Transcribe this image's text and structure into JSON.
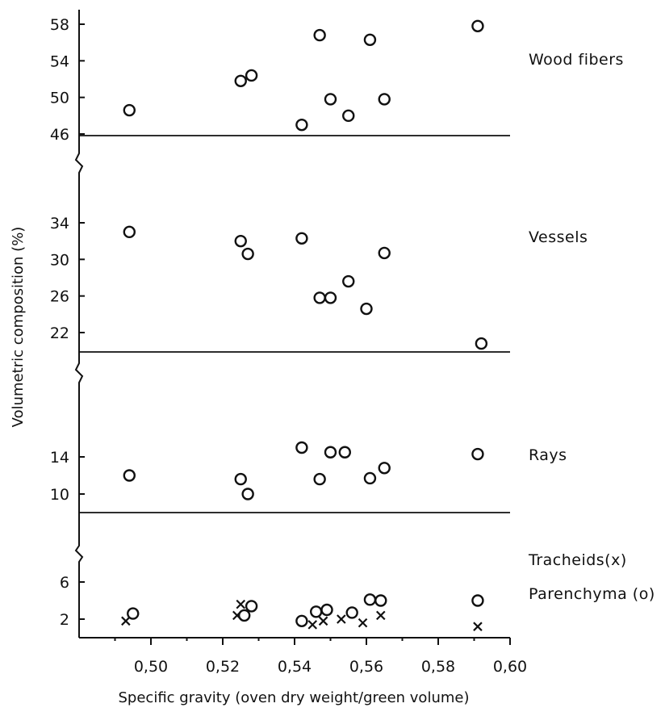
{
  "chart_data": {
    "type": "scatter",
    "xlabel": "Specific gravity (oven dry weight/green volume)",
    "ylabel": "Volumetric composition (%)",
    "xlim": [
      0.48,
      0.6
    ],
    "x_ticks": [
      "0,50",
      "0,52",
      "0,54",
      "0,56",
      "0,58",
      "0,60"
    ],
    "x_tick_values": [
      0.5,
      0.52,
      0.54,
      0.56,
      0.58,
      0.6
    ],
    "panels": [
      {
        "label": "Wood fibers",
        "ylim": [
          46,
          59
        ],
        "y_ticks": [
          46,
          50,
          54,
          58
        ],
        "series": [
          {
            "marker": "o",
            "points": [
              [
                0.494,
                48.6
              ],
              [
                0.525,
                51.8
              ],
              [
                0.528,
                52.4
              ],
              [
                0.542,
                47.0
              ],
              [
                0.547,
                56.8
              ],
              [
                0.55,
                49.8
              ],
              [
                0.555,
                48.0
              ],
              [
                0.561,
                56.3
              ],
              [
                0.565,
                49.8
              ],
              [
                0.591,
                57.8
              ]
            ]
          }
        ]
      },
      {
        "label": "Vessels",
        "ylim": [
          20,
          35
        ],
        "y_ticks": [
          22,
          26,
          30,
          34
        ],
        "series": [
          {
            "marker": "o",
            "points": [
              [
                0.494,
                33.0
              ],
              [
                0.525,
                32.0
              ],
              [
                0.527,
                30.6
              ],
              [
                0.542,
                32.3
              ],
              [
                0.547,
                25.8
              ],
              [
                0.55,
                25.8
              ],
              [
                0.555,
                27.6
              ],
              [
                0.56,
                24.6
              ],
              [
                0.565,
                30.7
              ],
              [
                0.592,
                20.8
              ]
            ]
          }
        ]
      },
      {
        "label": "Rays",
        "ylim": [
          8,
          18
        ],
        "y_ticks": [
          10,
          14
        ],
        "series": [
          {
            "marker": "o",
            "points": [
              [
                0.494,
                12.0
              ],
              [
                0.525,
                11.6
              ],
              [
                0.527,
                10.0
              ],
              [
                0.542,
                15.0
              ],
              [
                0.547,
                11.6
              ],
              [
                0.55,
                14.5
              ],
              [
                0.554,
                14.5
              ],
              [
                0.561,
                11.7
              ],
              [
                0.565,
                12.8
              ],
              [
                0.591,
                14.3
              ]
            ]
          }
        ]
      },
      {
        "label": "",
        "ylim": [
          0,
          8
        ],
        "y_ticks": [
          2,
          6
        ],
        "series": [
          {
            "name": "Tracheids(x)",
            "marker": "x",
            "points": [
              [
                0.493,
                1.8
              ],
              [
                0.524,
                2.4
              ],
              [
                0.525,
                3.6
              ],
              [
                0.545,
                1.4
              ],
              [
                0.548,
                1.8
              ],
              [
                0.553,
                2.0
              ],
              [
                0.559,
                1.6
              ],
              [
                0.564,
                2.4
              ],
              [
                0.591,
                1.2
              ]
            ]
          },
          {
            "name": "Parenchyma (o)",
            "marker": "o",
            "points": [
              [
                0.495,
                2.6
              ],
              [
                0.526,
                2.4
              ],
              [
                0.528,
                3.4
              ],
              [
                0.542,
                1.8
              ],
              [
                0.546,
                2.8
              ],
              [
                0.549,
                3.0
              ],
              [
                0.556,
                2.7
              ],
              [
                0.561,
                4.1
              ],
              [
                0.564,
                4.0
              ],
              [
                0.591,
                4.0
              ]
            ]
          }
        ]
      }
    ]
  }
}
